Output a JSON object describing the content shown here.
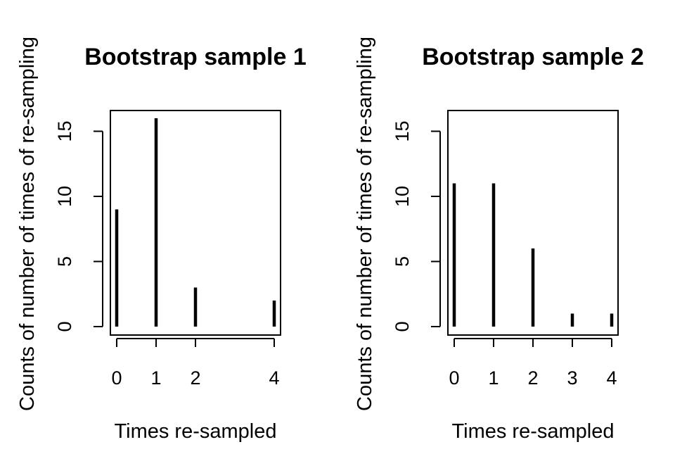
{
  "chart_data": [
    {
      "type": "bar",
      "title": "Bootstrap sample 1",
      "xlabel": "Times re-sampled",
      "ylabel": "Counts of number of times of re-sampling",
      "x": [
        0,
        1,
        2,
        4
      ],
      "values": [
        9,
        16,
        3,
        2
      ],
      "x_ticks": [
        0,
        1,
        2,
        4
      ],
      "y_ticks": [
        0,
        5,
        10,
        15
      ],
      "xlim": [
        0,
        4
      ],
      "ylim": [
        0,
        16
      ],
      "grid": false,
      "legend": "none"
    },
    {
      "type": "bar",
      "title": "Bootstrap sample 2",
      "xlabel": "Times re-sampled",
      "ylabel": "Counts of number of times of re-sampling",
      "x": [
        0,
        1,
        2,
        3,
        4
      ],
      "values": [
        11,
        11,
        6,
        1,
        1
      ],
      "x_ticks": [
        0,
        1,
        2,
        3,
        4
      ],
      "y_ticks": [
        0,
        5,
        10,
        15
      ],
      "xlim": [
        0,
        4
      ],
      "ylim": [
        0,
        16
      ],
      "grid": false,
      "legend": "none"
    }
  ]
}
